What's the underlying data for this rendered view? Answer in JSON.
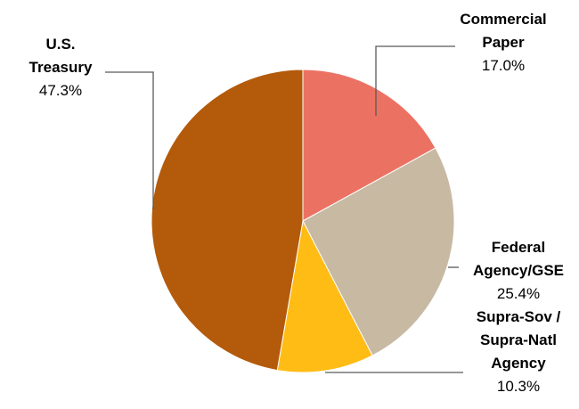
{
  "chart_data": {
    "type": "pie",
    "title": "",
    "slices": [
      {
        "name_lines": [
          "Commercial",
          "Paper"
        ],
        "label": "Commercial Paper",
        "value": 17.0,
        "value_text": "17.0%",
        "color": "#EB7263"
      },
      {
        "name_lines": [
          "Federal",
          "Agency/GSE"
        ],
        "label": "Federal Agency/GSE",
        "value": 25.4,
        "value_text": "25.4%",
        "color": "#C8B9A3"
      },
      {
        "name_lines": [
          "Supra-Sov /",
          "Supra-Natl",
          "Agency"
        ],
        "label": "Supra-Sov / Supra-Natl Agency",
        "value": 10.3,
        "value_text": "10.3%",
        "color": "#FFBC15"
      },
      {
        "name_lines": [
          "U.S.",
          "Treasury"
        ],
        "label": "U.S. Treasury",
        "value": 47.3,
        "value_text": "47.3%",
        "color": "#B45A0B"
      }
    ]
  }
}
